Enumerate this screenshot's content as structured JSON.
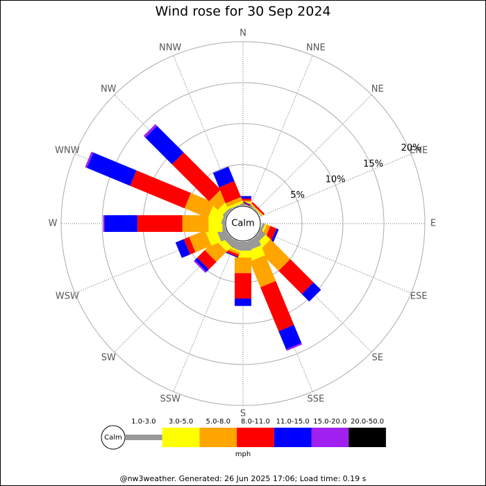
{
  "chart_data": {
    "type": "windrose",
    "title": "Wind rose for 30 Sep 2024",
    "categories": [
      "N",
      "NNE",
      "NE",
      "ENE",
      "E",
      "ESE",
      "SE",
      "SSE",
      "S",
      "SSW",
      "SW",
      "WSW",
      "W",
      "WNW",
      "NW",
      "NNW"
    ],
    "calm_label": "Calm",
    "legend_unit": "mph",
    "rlim": [
      0,
      20
    ],
    "rticks": [
      {
        "value": 5,
        "label": "5%"
      },
      {
        "value": 10,
        "label": "10%"
      },
      {
        "value": 15,
        "label": "15%"
      },
      {
        "value": 20,
        "label": "20%"
      }
    ],
    "series": [
      {
        "name": "1.0-3.0",
        "color": "#999999",
        "values": [
          0.2,
          0.1,
          0.1,
          0,
          0,
          0.3,
          0.7,
          1.1,
          1.1,
          1.0,
          0.8,
          1.1,
          0.3,
          0.3,
          0.3,
          0.1
        ]
      },
      {
        "name": "3.0-5.0",
        "color": "#ffff00",
        "values": [
          0.2,
          0,
          0.1,
          0,
          0,
          0.2,
          0.85,
          1.3,
          0.85,
          0.2,
          0.8,
          1.3,
          1.7,
          1.7,
          0.85,
          0.3
        ]
      },
      {
        "name": "5.0-8.0",
        "color": "#ffa500",
        "values": [
          0.2,
          0,
          0.1,
          0,
          0,
          0.5,
          3.4,
          3.4,
          1.9,
          0.3,
          1.8,
          2.1,
          3.2,
          3.1,
          1.5,
          0.5
        ]
      },
      {
        "name": "8.0-11.0",
        "color": "#ff0000",
        "values": [
          0.25,
          0.1,
          0.2,
          0,
          0,
          0.8,
          4.0,
          5.8,
          3.1,
          0.3,
          1.3,
          0.7,
          5.5,
          7.2,
          6.4,
          2.1
        ]
      },
      {
        "name": "11.0-15.0",
        "color": "#0000ff",
        "values": [
          0.3,
          0.1,
          0,
          0,
          0,
          0.3,
          1.3,
          2.4,
          0.9,
          0.1,
          0.4,
          1.1,
          4.0,
          5.7,
          4.6,
          1.9
        ]
      },
      {
        "name": "15.0-20.0",
        "color": "#a020f0",
        "values": [
          0,
          0,
          0,
          0,
          0,
          0,
          0,
          0.2,
          0,
          0,
          0.2,
          0,
          0.17,
          0.25,
          0.3,
          0
        ]
      },
      {
        "name": "20.0-50.0",
        "color": "#000000",
        "values": [
          0,
          0,
          0,
          0,
          0,
          0,
          0,
          0,
          0,
          0,
          0,
          0,
          0,
          0,
          0,
          0
        ]
      }
    ],
    "footer": "@nw3weather. Generated: 26 Jun 2025 17:06; Load time: 0.19 s"
  }
}
